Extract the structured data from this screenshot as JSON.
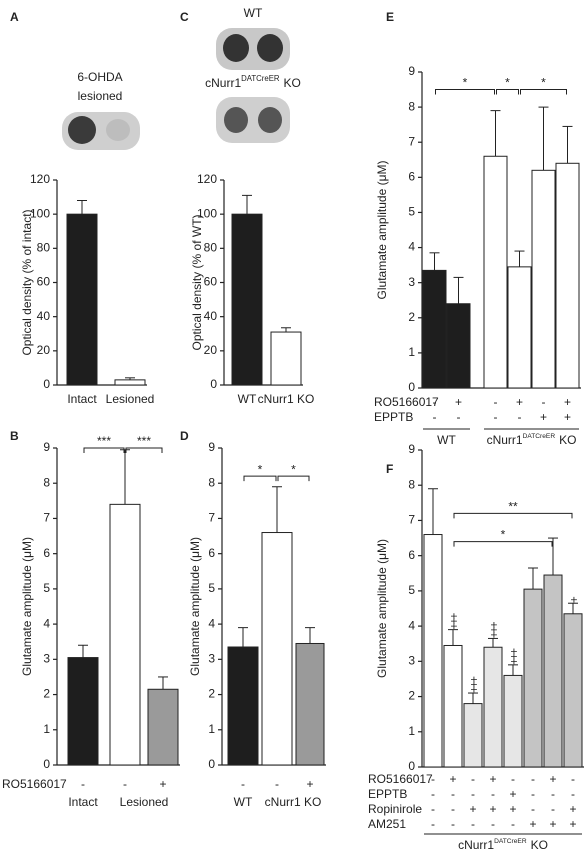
{
  "chart_data": [
    {
      "panel": "A",
      "type": "bar",
      "image_caption": [
        "6-OHDA",
        "lesioned"
      ],
      "ylabel": "Optical density (% of intact)",
      "ylim": [
        0,
        120
      ],
      "yticks": [
        0,
        20,
        40,
        60,
        80,
        100,
        120
      ],
      "categories": [
        "Intact",
        "Lesioned"
      ],
      "values": [
        100,
        3
      ],
      "errors": [
        8,
        1.2
      ],
      "colors": [
        "#1e1e1e",
        "#ffffff"
      ]
    },
    {
      "panel": "B",
      "type": "bar",
      "ylabel": "Glutamate amplitude (μM)",
      "ylim": [
        0,
        9
      ],
      "yticks": [
        0,
        1,
        2,
        3,
        4,
        5,
        6,
        7,
        8,
        9
      ],
      "values": [
        3.05,
        7.4,
        2.15
      ],
      "errors": [
        0.35,
        1.55,
        0.35
      ],
      "colors": [
        "#1e1e1e",
        "#ffffff",
        "#9a9a9a"
      ],
      "conditions": [
        {
          "name": "RO5166017",
          "signs": [
            "-",
            "-",
            "+"
          ]
        }
      ],
      "groups": [
        "Intact",
        "Lesioned"
      ],
      "significance": [
        "***",
        "***"
      ]
    },
    {
      "panel": "C",
      "type": "bar",
      "image_captions": [
        "WT",
        {
          "text": "cNurr1",
          "sup": "DATCreER",
          "tail": "KO"
        }
      ],
      "ylabel": "Optical density (% of WT)",
      "ylim": [
        0,
        120
      ],
      "yticks": [
        0,
        20,
        40,
        60,
        80,
        100,
        120
      ],
      "categories": [
        "WT",
        "cNurr1 KO"
      ],
      "values": [
        100,
        31
      ],
      "errors": [
        11,
        2.5
      ],
      "colors": [
        "#1e1e1e",
        "#ffffff"
      ]
    },
    {
      "panel": "D",
      "type": "bar",
      "ylabel": "Glutamate amplitude (μM)",
      "ylim": [
        0,
        9
      ],
      "yticks": [
        0,
        1,
        2,
        3,
        4,
        5,
        6,
        7,
        8,
        9
      ],
      "values": [
        3.35,
        6.6,
        3.45
      ],
      "errors": [
        0.55,
        1.3,
        0.45
      ],
      "colors": [
        "#1e1e1e",
        "#ffffff",
        "#9a9a9a"
      ],
      "conditions": [
        {
          "signs": [
            "-",
            "-",
            "+"
          ]
        }
      ],
      "groups": [
        "WT",
        "cNurr1 KO"
      ],
      "significance": [
        "*",
        "*"
      ]
    },
    {
      "panel": "E",
      "type": "bar",
      "ylabel": "Glutamate amplitude (μM)",
      "ylim": [
        0,
        9
      ],
      "yticks": [
        0,
        1,
        2,
        3,
        4,
        5,
        6,
        7,
        8,
        9
      ],
      "values": [
        3.35,
        2.4,
        6.6,
        3.45,
        6.2,
        6.4
      ],
      "errors": [
        0.5,
        0.75,
        1.3,
        0.45,
        1.8,
        1.05
      ],
      "colors": [
        "#1e1e1e",
        "#1e1e1e",
        "#ffffff",
        "#ffffff",
        "#ffffff",
        "#ffffff"
      ],
      "conditions": [
        {
          "name": "RO5166017",
          "signs": [
            "-",
            "+",
            "-",
            "+",
            "-",
            "+"
          ]
        },
        {
          "name": "EPPTB",
          "signs": [
            "-",
            "-",
            "-",
            "-",
            "+",
            "+"
          ]
        }
      ],
      "groups": [
        "WT",
        {
          "text": "cNurr1",
          "sup": "DATCreER",
          "tail": "KO"
        }
      ],
      "significance": [
        "*",
        "*",
        "*"
      ]
    },
    {
      "panel": "F",
      "type": "bar",
      "ylabel": "Glutamate amplitude (μM)",
      "ylim": [
        0,
        9
      ],
      "yticks": [
        0,
        1,
        2,
        3,
        4,
        5,
        6,
        7,
        8,
        9
      ],
      "values": [
        6.6,
        3.45,
        1.8,
        3.4,
        2.6,
        5.05,
        5.45,
        4.35
      ],
      "errors": [
        1.3,
        0.45,
        0.3,
        0.25,
        0.3,
        0.6,
        1.05,
        0.3
      ],
      "colors": [
        "#ffffff",
        "#ffffff",
        "#e6e6e6",
        "#e6e6e6",
        "#e6e6e6",
        "#c4c4c4",
        "#c4c4c4",
        "#c4c4c4"
      ],
      "conditions": [
        {
          "name": "RO5166017",
          "signs": [
            "-",
            "+",
            "-",
            "+",
            "-",
            "-",
            "+",
            "-"
          ]
        },
        {
          "name": "EPPTB",
          "signs": [
            "-",
            "-",
            "-",
            "-",
            "+",
            "-",
            "-",
            "-"
          ]
        },
        {
          "name": "Ropinirole",
          "signs": [
            "-",
            "-",
            "+",
            "+",
            "+",
            "-",
            "-",
            "+"
          ]
        },
        {
          "name": "AM251",
          "signs": [
            "-",
            "-",
            "-",
            "-",
            "-",
            "+",
            "+",
            "+"
          ]
        }
      ],
      "groups": [
        {
          "text": "cNurr1",
          "sup": "DATCreER",
          "tail": "KO"
        }
      ],
      "significance": [
        "*",
        "**"
      ],
      "plus_marks": [
        "+++",
        "+++",
        "+++",
        "+++",
        "+"
      ]
    }
  ]
}
